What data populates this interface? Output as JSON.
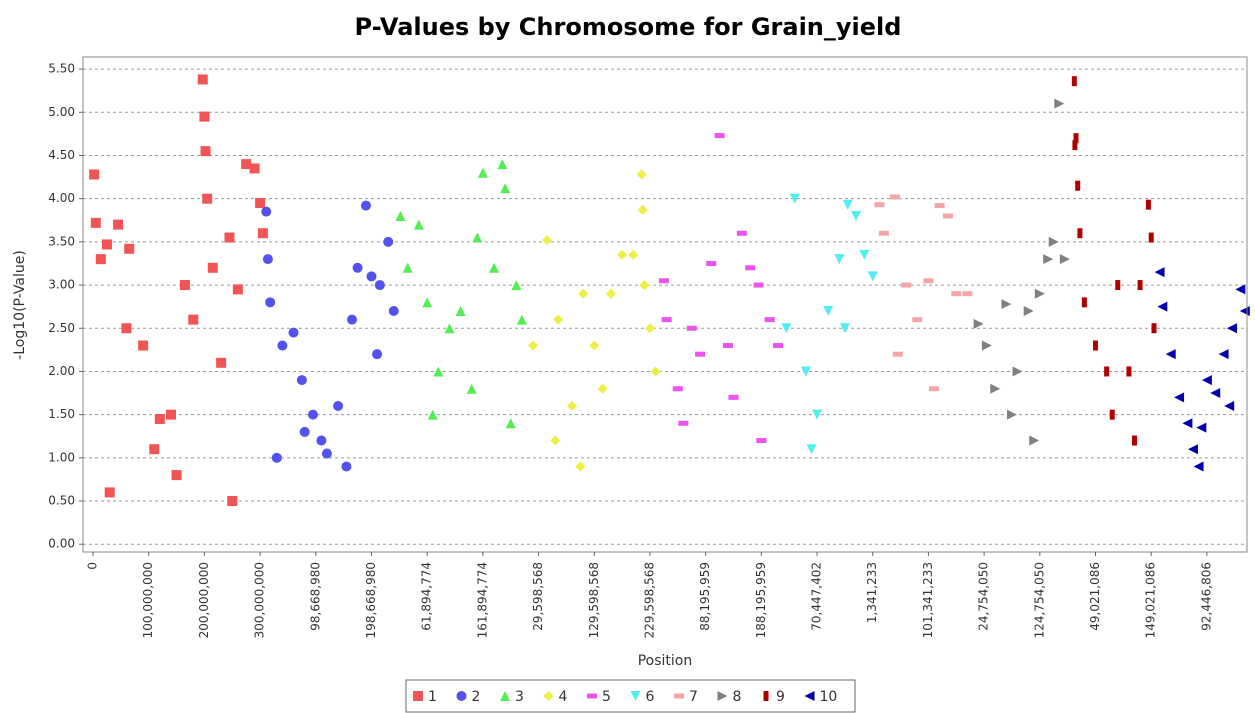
{
  "chart_data": {
    "type": "scatter",
    "title": "P-Values by Chromosome for Grain_yield",
    "x_label": "Position",
    "y_label": "-Log10(P-Value)",
    "grid": true,
    "legend": "bottom",
    "xlim": [
      -18000000.0,
      2072000000.0
    ],
    "ylim": [
      -0.09,
      5.64
    ],
    "xticks": [
      {
        "value": 0,
        "label": "0"
      },
      {
        "value": 100000000.0,
        "label": "100,000,000"
      },
      {
        "value": 200000000.0,
        "label": "200,000,000"
      },
      {
        "value": 300000000.0,
        "label": "300,000,000"
      },
      {
        "value": 400000000.0,
        "label": "98,668,980"
      },
      {
        "value": 500000000.0,
        "label": "198,668,980"
      },
      {
        "value": 600000000.0,
        "label": "61,894,774"
      },
      {
        "value": 700000000.0,
        "label": "161,894,774"
      },
      {
        "value": 800000000.0,
        "label": "29,598,568"
      },
      {
        "value": 900000000.0,
        "label": "129,598,568"
      },
      {
        "value": 1000000000.0,
        "label": "229,598,568"
      },
      {
        "value": 1100000000.0,
        "label": "88,195,959"
      },
      {
        "value": 1200000000.0,
        "label": "188,195,959"
      },
      {
        "value": 1300000000.0,
        "label": "70,447,402"
      },
      {
        "value": 1400000000.0,
        "label": "1,341,233"
      },
      {
        "value": 1500000000.0,
        "label": "101,341,233"
      },
      {
        "value": 1600000000.0,
        "label": "24,754,050"
      },
      {
        "value": 1700000000.0,
        "label": "124,754,050"
      },
      {
        "value": 1800000000.0,
        "label": "49,021,086"
      },
      {
        "value": 1900000000.0,
        "label": "149,021,086"
      },
      {
        "value": 2000000000.0,
        "label": "92,446,806"
      }
    ],
    "yticks": [
      {
        "value": 0,
        "label": "0.00"
      },
      {
        "value": 0.5,
        "label": "0.50"
      },
      {
        "value": 1,
        "label": "1.00"
      },
      {
        "value": 1.5,
        "label": "1.50"
      },
      {
        "value": 2,
        "label": "2.00"
      },
      {
        "value": 2.5,
        "label": "2.50"
      },
      {
        "value": 3,
        "label": "3.00"
      },
      {
        "value": 3.5,
        "label": "3.50"
      },
      {
        "value": 4,
        "label": "4.00"
      },
      {
        "value": 4.5,
        "label": "4.50"
      },
      {
        "value": 5,
        "label": "5.00"
      },
      {
        "value": 5.5,
        "label": "5.50"
      }
    ],
    "series": [
      {
        "name": "1",
        "color": "#f05454",
        "marker": "square",
        "x": [
          2000000.0,
          5000000.0,
          14000000.0,
          25000000.0,
          45000000.0,
          65000000.0,
          90000000.0,
          120000000.0,
          140000000.0,
          165000000.0,
          180000000.0,
          197000000.0,
          200000000.0,
          202000000.0,
          205000000.0,
          215000000.0,
          245000000.0,
          260000000.0,
          275000000.0,
          290000000.0,
          300000000.0,
          305000000.0,
          110000000.0,
          60000000.0,
          230000000.0,
          30000000.0,
          150000000.0,
          250000000.0
        ],
        "values": [
          4.28,
          3.72,
          3.3,
          3.47,
          3.7,
          3.42,
          2.3,
          1.45,
          1.5,
          3.0,
          2.6,
          5.38,
          4.95,
          4.55,
          4.0,
          3.2,
          3.55,
          2.95,
          4.4,
          4.35,
          3.95,
          3.6,
          1.1,
          2.5,
          2.1,
          0.6,
          0.8,
          0.5
        ]
      },
      {
        "name": "2",
        "color": "#5252ee",
        "marker": "circle",
        "x": [
          311000000.0,
          314000000.0,
          318000000.0,
          340000000.0,
          360000000.0,
          375000000.0,
          395000000.0,
          410000000.0,
          420000000.0,
          440000000.0,
          465000000.0,
          475000000.0,
          490000000.0,
          500000000.0,
          515000000.0,
          530000000.0,
          540000000.0,
          380000000.0,
          455000000.0,
          510000000.0,
          330000000.0
        ],
        "values": [
          3.85,
          3.3,
          2.8,
          2.3,
          2.45,
          1.9,
          1.5,
          1.2,
          1.05,
          1.6,
          2.6,
          3.2,
          3.92,
          3.1,
          3.0,
          3.5,
          2.7,
          1.3,
          0.9,
          2.2,
          1.0
        ]
      },
      {
        "name": "3",
        "color": "#52ee52",
        "marker": "triangle-up",
        "x": [
          552000000.0,
          565000000.0,
          585000000.0,
          600000000.0,
          620000000.0,
          640000000.0,
          660000000.0,
          690000000.0,
          700000000.0,
          720000000.0,
          735000000.0,
          740000000.0,
          760000000.0,
          770000000.0,
          610000000.0,
          680000000.0,
          750000000.0
        ],
        "values": [
          3.8,
          3.2,
          3.7,
          2.8,
          2.0,
          2.5,
          2.7,
          3.55,
          4.3,
          3.2,
          4.4,
          4.12,
          3.0,
          2.6,
          1.5,
          1.8,
          1.4
        ]
      },
      {
        "name": "4",
        "color": "#eeee44",
        "marker": "diamond",
        "x": [
          790000000.0,
          815000000.0,
          835000000.0,
          860000000.0,
          880000000.0,
          900000000.0,
          930000000.0,
          950000000.0,
          970000000.0,
          985000000.0,
          987000000.0,
          990000000.0,
          1000000000.0,
          1010000000.0,
          830000000.0,
          915000000.0,
          875000000.0
        ],
        "values": [
          2.3,
          3.52,
          2.6,
          1.6,
          2.9,
          2.3,
          2.9,
          3.35,
          3.35,
          4.28,
          3.87,
          3.0,
          2.5,
          2.0,
          1.2,
          1.8,
          0.9
        ]
      },
      {
        "name": "5",
        "color": "#ee52ee",
        "marker": "dash",
        "x": [
          1025000000.0,
          1030000000.0,
          1050000000.0,
          1075000000.0,
          1090000000.0,
          1110000000.0,
          1125000000.0,
          1140000000.0,
          1165000000.0,
          1180000000.0,
          1195000000.0,
          1215000000.0,
          1230000000.0,
          1060000000.0,
          1150000000.0,
          1200000000.0
        ],
        "values": [
          3.05,
          2.6,
          1.8,
          2.5,
          2.2,
          3.25,
          4.73,
          2.3,
          3.6,
          3.2,
          3.0,
          2.6,
          2.3,
          1.4,
          1.7,
          1.2
        ]
      },
      {
        "name": "6",
        "color": "#52eeee",
        "marker": "triangle-down",
        "x": [
          1245000000.0,
          1260000000.0,
          1280000000.0,
          1300000000.0,
          1320000000.0,
          1340000000.0,
          1355000000.0,
          1370000000.0,
          1385000000.0,
          1400000000.0,
          1290000000.0,
          1350000000.0
        ],
        "values": [
          2.5,
          4.0,
          2.0,
          1.5,
          2.7,
          3.3,
          3.93,
          3.8,
          3.35,
          3.1,
          1.1,
          2.5
        ]
      },
      {
        "name": "7",
        "color": "#f4a6a6",
        "marker": "dash",
        "x": [
          1412000000.0,
          1420000000.0,
          1440000000.0,
          1460000000.0,
          1480000000.0,
          1500000000.0,
          1520000000.0,
          1535000000.0,
          1550000000.0,
          1570000000.0,
          1445000000.0,
          1510000000.0
        ],
        "values": [
          3.93,
          3.6,
          4.02,
          3.0,
          2.6,
          3.05,
          3.92,
          3.8,
          2.9,
          2.9,
          2.2,
          1.8
        ]
      },
      {
        "name": "8",
        "color": "#808080",
        "marker": "triangle-right",
        "x": [
          1590000000.0,
          1605000000.0,
          1620000000.0,
          1640000000.0,
          1660000000.0,
          1680000000.0,
          1700000000.0,
          1715000000.0,
          1725000000.0,
          1735000000.0,
          1745000000.0,
          1650000000.0,
          1690000000.0
        ],
        "values": [
          2.55,
          2.3,
          1.8,
          2.78,
          2.0,
          2.7,
          2.9,
          3.3,
          3.5,
          5.1,
          3.3,
          1.5,
          1.2
        ]
      },
      {
        "name": "9",
        "color": "#b00000",
        "marker": "tall-rect",
        "x": [
          1762000000.0,
          1765000000.0,
          1768000000.0,
          1772000000.0,
          1780000000.0,
          1800000000.0,
          1820000000.0,
          1840000000.0,
          1860000000.0,
          1880000000.0,
          1895000000.0,
          1900000000.0,
          1905000000.0,
          1830000000.0,
          1870000000.0,
          1763000000.0
        ],
        "values": [
          5.36,
          4.7,
          4.15,
          3.6,
          2.8,
          2.3,
          2.0,
          3.0,
          2.0,
          3.0,
          3.93,
          3.55,
          2.5,
          1.5,
          1.2,
          4.62
        ]
      },
      {
        "name": "10",
        "color": "#0000aa",
        "marker": "triangle-left",
        "x": [
          1915000000.0,
          1920000000.0,
          1935000000.0,
          1950000000.0,
          1965000000.0,
          1975000000.0,
          1990000000.0,
          2000000000.0,
          2015000000.0,
          2030000000.0,
          2045000000.0,
          2060000000.0,
          2068000000.0,
          1985000000.0,
          2040000000.0
        ],
        "values": [
          3.15,
          2.75,
          2.2,
          1.7,
          1.4,
          1.1,
          1.35,
          1.9,
          1.75,
          2.2,
          2.5,
          2.95,
          2.7,
          0.9,
          1.6
        ]
      }
    ]
  }
}
